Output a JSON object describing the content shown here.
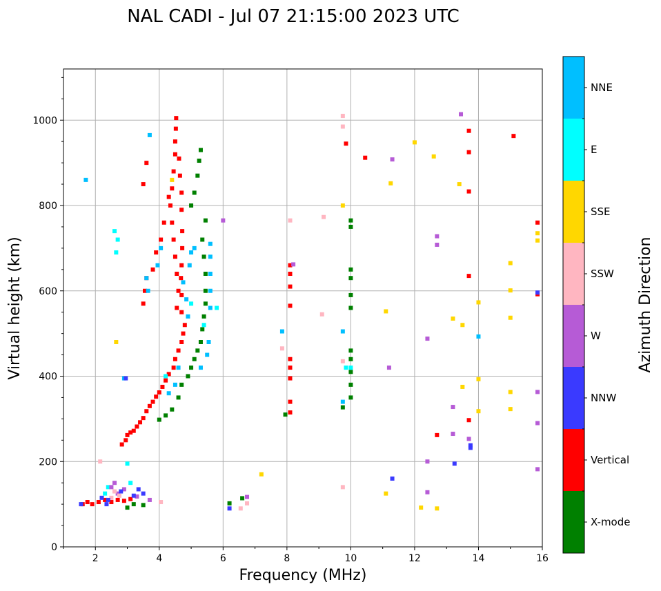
{
  "chart_data": {
    "type": "scatter",
    "title": "NAL CADI - Jul 07 21:15:00 2023 UTC",
    "xlabel": "Frequency (MHz)",
    "ylabel": "Virtual height (km)",
    "xlim": [
      1,
      16
    ],
    "ylim": [
      0,
      1120
    ],
    "xticks": [
      2,
      4,
      6,
      8,
      10,
      12,
      14,
      16
    ],
    "yticks": [
      0,
      200,
      400,
      600,
      800,
      1000
    ],
    "grid": true,
    "colorbar": {
      "label": "Azimuth Direction",
      "categories": [
        {
          "name": "X-mode",
          "color": "#008000"
        },
        {
          "name": "Vertical",
          "color": "#ff0000"
        },
        {
          "name": "NNW",
          "color": "#3a3aff"
        },
        {
          "name": "W",
          "color": "#b65bd6"
        },
        {
          "name": "SSW",
          "color": "#ffb6c1"
        },
        {
          "name": "SSE",
          "color": "#ffd700"
        },
        {
          "name": "E",
          "color": "#00ffff"
        },
        {
          "name": "NNE",
          "color": "#00bfff"
        }
      ]
    },
    "series": [
      {
        "name": "Vertical",
        "points": [
          [
            2.83,
            240
          ],
          [
            2.95,
            250
          ],
          [
            3.0,
            262
          ],
          [
            3.1,
            268
          ],
          [
            3.2,
            272
          ],
          [
            3.3,
            282
          ],
          [
            3.4,
            292
          ],
          [
            3.5,
            302
          ],
          [
            3.6,
            318
          ],
          [
            3.7,
            330
          ],
          [
            3.8,
            340
          ],
          [
            3.9,
            352
          ],
          [
            4.0,
            362
          ],
          [
            4.1,
            375
          ],
          [
            4.2,
            390
          ],
          [
            4.3,
            405
          ],
          [
            4.45,
            420
          ],
          [
            4.5,
            440
          ],
          [
            4.6,
            460
          ],
          [
            4.7,
            480
          ],
          [
            4.75,
            500
          ],
          [
            4.8,
            520
          ],
          [
            4.55,
            560
          ],
          [
            4.6,
            600
          ],
          [
            4.55,
            640
          ],
          [
            4.5,
            680
          ],
          [
            4.45,
            720
          ],
          [
            4.4,
            760
          ],
          [
            4.35,
            800
          ],
          [
            4.3,
            820
          ],
          [
            4.4,
            840
          ],
          [
            4.45,
            880
          ],
          [
            4.5,
            920
          ],
          [
            4.5,
            950
          ],
          [
            4.52,
            980
          ],
          [
            4.53,
            1005
          ],
          [
            4.7,
            550
          ],
          [
            4.7,
            590
          ],
          [
            4.68,
            630
          ],
          [
            4.7,
            660
          ],
          [
            4.72,
            700
          ],
          [
            4.72,
            740
          ],
          [
            4.7,
            790
          ],
          [
            4.7,
            830
          ],
          [
            4.65,
            870
          ],
          [
            4.62,
            910
          ],
          [
            3.5,
            570
          ],
          [
            3.55,
            600
          ],
          [
            3.6,
            630
          ],
          [
            3.8,
            650
          ],
          [
            3.9,
            690
          ],
          [
            4.05,
            720
          ],
          [
            4.15,
            760
          ],
          [
            3.5,
            850
          ],
          [
            3.6,
            900
          ],
          [
            1.6,
            100
          ],
          [
            1.75,
            105
          ],
          [
            1.9,
            100
          ],
          [
            2.1,
            105
          ],
          [
            2.3,
            110
          ],
          [
            2.5,
            105
          ],
          [
            2.7,
            110
          ],
          [
            2.9,
            108
          ],
          [
            3.1,
            112
          ],
          [
            8.1,
            315
          ],
          [
            8.1,
            340
          ],
          [
            8.1,
            395
          ],
          [
            8.1,
            420
          ],
          [
            8.1,
            440
          ],
          [
            8.1,
            565
          ],
          [
            8.1,
            610
          ],
          [
            8.1,
            640
          ],
          [
            8.1,
            660
          ],
          [
            10.45,
            912
          ],
          [
            12.7,
            262
          ],
          [
            13.7,
            297
          ],
          [
            13.7,
            635
          ],
          [
            13.7,
            833
          ],
          [
            13.7,
            925
          ],
          [
            13.7,
            975
          ],
          [
            15.1,
            963
          ],
          [
            15.85,
            592
          ],
          [
            15.85,
            760
          ],
          [
            9.85,
            945
          ]
        ]
      },
      {
        "name": "X-mode",
        "points": [
          [
            4.0,
            298
          ],
          [
            4.2,
            308
          ],
          [
            4.4,
            322
          ],
          [
            4.6,
            350
          ],
          [
            4.7,
            380
          ],
          [
            4.9,
            400
          ],
          [
            5.0,
            420
          ],
          [
            5.1,
            440
          ],
          [
            5.2,
            460
          ],
          [
            5.3,
            480
          ],
          [
            5.35,
            510
          ],
          [
            5.4,
            540
          ],
          [
            5.45,
            570
          ],
          [
            5.45,
            600
          ],
          [
            5.45,
            640
          ],
          [
            5.4,
            680
          ],
          [
            5.35,
            720
          ],
          [
            5.45,
            765
          ],
          [
            5.1,
            830
          ],
          [
            5.2,
            870
          ],
          [
            5.25,
            905
          ],
          [
            5.3,
            930
          ],
          [
            5.0,
            800
          ],
          [
            3.0,
            92
          ],
          [
            3.5,
            98
          ],
          [
            3.2,
            100
          ],
          [
            10.0,
            350
          ],
          [
            10.0,
            380
          ],
          [
            10.0,
            410
          ],
          [
            10.0,
            440
          ],
          [
            10.0,
            460
          ],
          [
            10.0,
            560
          ],
          [
            10.0,
            590
          ],
          [
            10.0,
            630
          ],
          [
            10.0,
            650
          ],
          [
            10.0,
            750
          ],
          [
            10.0,
            765
          ],
          [
            6.2,
            102
          ],
          [
            6.6,
            114
          ],
          [
            9.75,
            327
          ],
          [
            7.95,
            310
          ]
        ]
      },
      {
        "name": "NNE",
        "points": [
          [
            5.6,
            560
          ],
          [
            5.6,
            600
          ],
          [
            5.6,
            640
          ],
          [
            5.6,
            680
          ],
          [
            5.6,
            710
          ],
          [
            5.55,
            480
          ],
          [
            5.5,
            450
          ],
          [
            5.3,
            420
          ],
          [
            4.9,
            540
          ],
          [
            4.85,
            580
          ],
          [
            4.75,
            620
          ],
          [
            4.95,
            660
          ],
          [
            5.0,
            690
          ],
          [
            5.1,
            700
          ],
          [
            4.6,
            420
          ],
          [
            4.5,
            380
          ],
          [
            4.3,
            360
          ],
          [
            3.65,
            600
          ],
          [
            3.6,
            630
          ],
          [
            3.95,
            660
          ],
          [
            4.05,
            700
          ],
          [
            3.7,
            965
          ],
          [
            1.7,
            860
          ],
          [
            2.9,
            395
          ],
          [
            9.75,
            340
          ],
          [
            9.75,
            505
          ],
          [
            7.85,
            505
          ],
          [
            14.0,
            493
          ]
        ]
      },
      {
        "name": "E",
        "points": [
          [
            2.65,
            690
          ],
          [
            2.7,
            720
          ],
          [
            2.6,
            740
          ],
          [
            2.4,
            140
          ],
          [
            2.3,
            125
          ],
          [
            3.1,
            150
          ],
          [
            3.0,
            195
          ],
          [
            5.8,
            560
          ],
          [
            4.2,
            400
          ],
          [
            9.85,
            420
          ],
          [
            10.0,
            420
          ],
          [
            5.0,
            570
          ],
          [
            5.4,
            520
          ]
        ]
      },
      {
        "name": "SSE",
        "points": [
          [
            2.65,
            480
          ],
          [
            4.4,
            860
          ],
          [
            7.2,
            170
          ],
          [
            9.75,
            800
          ],
          [
            11.1,
            552
          ],
          [
            11.25,
            852
          ],
          [
            12.2,
            92
          ],
          [
            12.7,
            90
          ],
          [
            12.6,
            915
          ],
          [
            13.2,
            535
          ],
          [
            13.5,
            520
          ],
          [
            13.5,
            375
          ],
          [
            13.4,
            850
          ],
          [
            14.0,
            573
          ],
          [
            14.0,
            393
          ],
          [
            14.0,
            318
          ],
          [
            15.0,
            665
          ],
          [
            15.0,
            601
          ],
          [
            15.0,
            537
          ],
          [
            15.0,
            363
          ],
          [
            15.0,
            323
          ],
          [
            11.1,
            125
          ],
          [
            15.85,
            735
          ],
          [
            15.85,
            718
          ],
          [
            12.0,
            948
          ]
        ]
      },
      {
        "name": "W",
        "points": [
          [
            2.7,
            125
          ],
          [
            2.9,
            135
          ],
          [
            3.3,
            118
          ],
          [
            3.7,
            110
          ],
          [
            2.6,
            150
          ],
          [
            2.5,
            140
          ],
          [
            6.75,
            117
          ],
          [
            11.2,
            420
          ],
          [
            11.3,
            908
          ],
          [
            12.4,
            488
          ],
          [
            12.4,
            200
          ],
          [
            12.4,
            128
          ],
          [
            12.7,
            728
          ],
          [
            12.7,
            708
          ],
          [
            13.2,
            265
          ],
          [
            13.2,
            328
          ],
          [
            13.45,
            1014
          ],
          [
            13.7,
            253
          ],
          [
            15.85,
            363
          ],
          [
            15.85,
            290
          ],
          [
            15.85,
            182
          ],
          [
            6.0,
            765
          ],
          [
            8.2,
            662
          ]
        ]
      },
      {
        "name": "SSW",
        "points": [
          [
            2.15,
            200
          ],
          [
            2.5,
            115
          ],
          [
            2.6,
            130
          ],
          [
            2.75,
            120
          ],
          [
            4.05,
            105
          ],
          [
            6.55,
            90
          ],
          [
            6.75,
            102
          ],
          [
            8.1,
            765
          ],
          [
            9.1,
            545
          ],
          [
            9.15,
            773
          ],
          [
            9.75,
            985
          ],
          [
            9.75,
            1010
          ],
          [
            7.85,
            465
          ],
          [
            9.75,
            140
          ],
          [
            9.75,
            435
          ]
        ]
      },
      {
        "name": "NNW",
        "points": [
          [
            1.55,
            100
          ],
          [
            2.2,
            115
          ],
          [
            2.4,
            110
          ],
          [
            2.8,
            130
          ],
          [
            3.2,
            120
          ],
          [
            3.35,
            135
          ],
          [
            3.5,
            125
          ],
          [
            6.2,
            90
          ],
          [
            11.3,
            160
          ],
          [
            13.25,
            195
          ],
          [
            13.75,
            232
          ],
          [
            13.75,
            238
          ],
          [
            15.85,
            596
          ],
          [
            2.95,
            395
          ],
          [
            2.35,
            100
          ]
        ]
      }
    ]
  }
}
